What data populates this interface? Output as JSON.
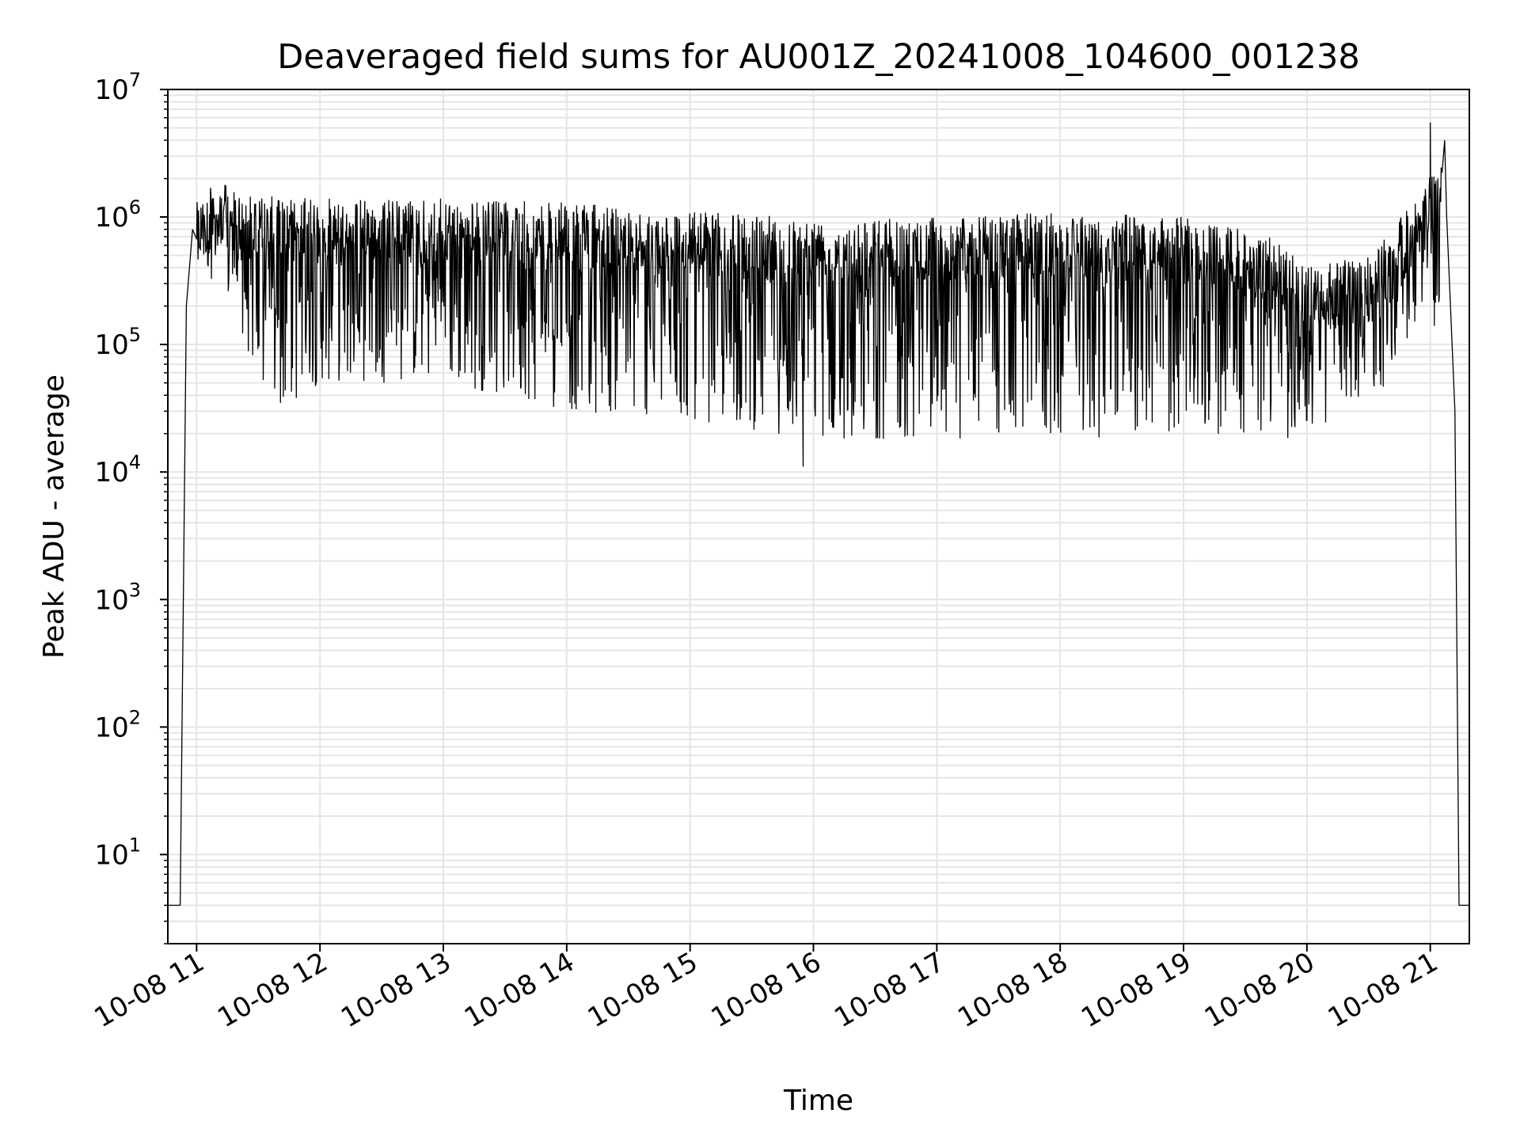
{
  "chart_data": {
    "type": "line",
    "title": "Deaveraged field sums for AU001Z_20241008_104600_001238",
    "xlabel": "Time",
    "ylabel": "Peak ADU - average",
    "yscale": "log",
    "ylim": [
      2,
      10000000
    ],
    "xlim": [
      "2024-10-08 10:46",
      "2024-10-08 21:19"
    ],
    "grid": {
      "major": true,
      "minor": true
    },
    "line_color": "#000000",
    "grid_color": "#e5e5e5",
    "x_ticks": [
      "10-08 11",
      "10-08 12",
      "10-08 13",
      "10-08 14",
      "10-08 15",
      "10-08 16",
      "10-08 17",
      "10-08 18",
      "10-08 19",
      "10-08 20",
      "10-08 21"
    ],
    "y_ticks": [
      {
        "base": "10",
        "exp": "1"
      },
      {
        "base": "10",
        "exp": "2"
      },
      {
        "base": "10",
        "exp": "3"
      },
      {
        "base": "10",
        "exp": "4"
      },
      {
        "base": "10",
        "exp": "5"
      },
      {
        "base": "10",
        "exp": "6"
      },
      {
        "base": "10",
        "exp": "7"
      }
    ],
    "series": [
      {
        "x": [
          "2024-10-08 10:46",
          "2024-10-08 10:49",
          "2024-10-08 10:52",
          "2024-10-08 10:55",
          "2024-10-08 10:58",
          "2024-10-08 11:02",
          "2024-10-08 11:06",
          "2024-10-08 11:12",
          "2024-10-08 11:20",
          "2024-10-08 11:30",
          "2024-10-08 11:40",
          "2024-10-08 11:50",
          "2024-10-08 12:00",
          "2024-10-08 12:30",
          "2024-10-08 13:00",
          "2024-10-08 13:30",
          "2024-10-08 14:00",
          "2024-10-08 14:30",
          "2024-10-08 15:00",
          "2024-10-08 15:30",
          "2024-10-08 16:00",
          "2024-10-08 16:30",
          "2024-10-08 17:00",
          "2024-10-08 17:30",
          "2024-10-08 18:00",
          "2024-10-08 18:30",
          "2024-10-08 19:00",
          "2024-10-08 19:30",
          "2024-10-08 19:55",
          "2024-10-08 20:10",
          "2024-10-08 20:30",
          "2024-10-08 20:50",
          "2024-10-08 20:57",
          "2024-10-08 21:03",
          "2024-10-08 21:08",
          "2024-10-08 21:12",
          "2024-10-08 21:14",
          "2024-10-08 21:19"
        ],
        "values": [
          4,
          4,
          4,
          200000,
          800000,
          1200000,
          1000000,
          700000,
          500000,
          200000,
          80000,
          70000,
          200000,
          400000,
          500000,
          450000,
          400000,
          350000,
          300000,
          250000,
          200000,
          200000,
          200000,
          220000,
          250000,
          200000,
          180000,
          150000,
          40000,
          80000,
          120000,
          200000,
          400000,
          1500000,
          1000000,
          30000,
          4,
          4
        ]
      }
    ],
    "envelope_upper": {
      "x": [
        "2024-10-08 11:00",
        "2024-10-08 11:10",
        "2024-10-08 11:20",
        "2024-10-08 12:00",
        "2024-10-08 13:00",
        "2024-10-08 14:00",
        "2024-10-08 15:00",
        "2024-10-08 16:00",
        "2024-10-08 17:00",
        "2024-10-08 18:00",
        "2024-10-08 19:00",
        "2024-10-08 19:45",
        "2024-10-08 20:00",
        "2024-10-08 20:30",
        "2024-10-08 20:55",
        "2024-10-08 21:05"
      ],
      "values": [
        1300000,
        2000000,
        1500000,
        1400000,
        1400000,
        1300000,
        1100000,
        1000000,
        1000000,
        1100000,
        1000000,
        700000,
        400000,
        500000,
        1500000,
        3000000
      ]
    },
    "envelope_lower": {
      "x": [
        "2024-10-08 11:00",
        "2024-10-08 11:20",
        "2024-10-08 11:35",
        "2024-10-08 11:45",
        "2024-10-08 12:00",
        "2024-10-08 13:00",
        "2024-10-08 14:00",
        "2024-10-08 15:00",
        "2024-10-08 16:00",
        "2024-10-08 17:00",
        "2024-10-08 18:00",
        "2024-10-08 19:00",
        "2024-10-08 19:55",
        "2024-10-08 20:15",
        "2024-10-08 20:40",
        "2024-10-08 21:00"
      ],
      "values": [
        500000,
        150000,
        25000,
        30000,
        50000,
        50000,
        30000,
        25000,
        18000,
        18000,
        18000,
        20000,
        18000,
        25000,
        50000,
        200000
      ]
    },
    "spikes": [
      {
        "x": "2024-10-08 15:55",
        "value": 11000
      },
      {
        "x": "2024-10-08 21:00",
        "value": 5500000
      },
      {
        "x": "2024-10-08 21:07",
        "value": 4000000
      },
      {
        "x": "2024-10-08 21:02",
        "value": 140000
      }
    ]
  }
}
